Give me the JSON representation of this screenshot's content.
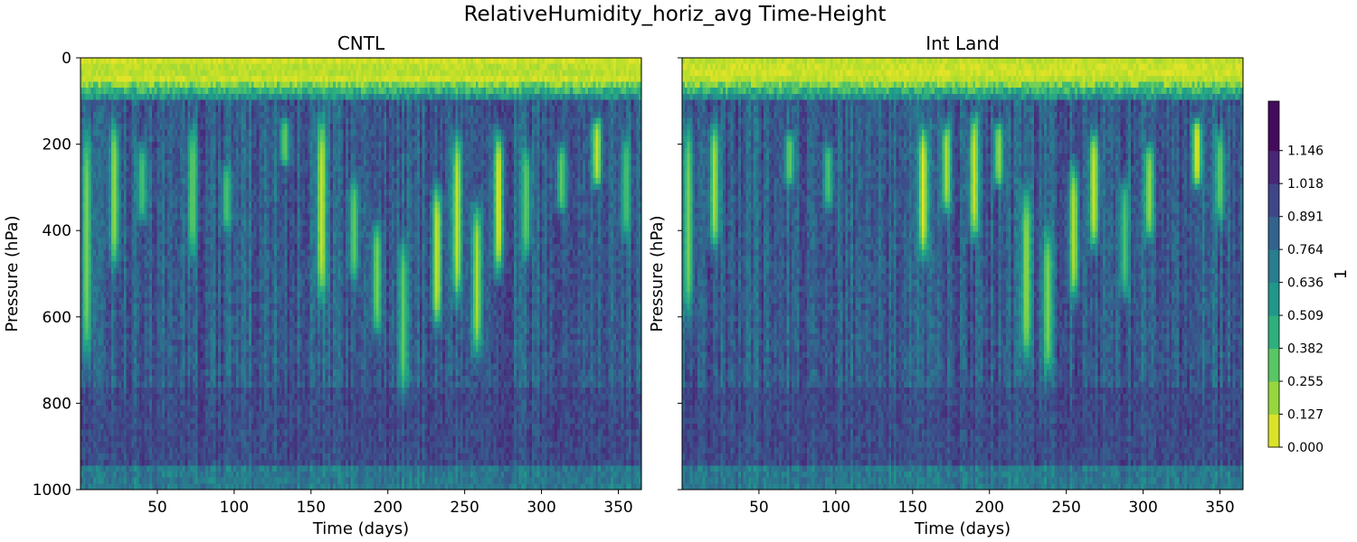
{
  "figure": {
    "title": "RelativeHumidity_horiz_avg Time-Height"
  },
  "chart_data": {
    "type": "heatmap",
    "shared": {
      "xlabel": "Time (days)",
      "ylabel": "Pressure (hPa)",
      "xlim": [
        0,
        365
      ],
      "ylim": [
        1000,
        0
      ],
      "y_inverted": true,
      "x_ticks": [
        50,
        100,
        150,
        200,
        250,
        300,
        350
      ],
      "y_ticks": [
        0,
        200,
        400,
        600,
        800,
        1000
      ],
      "colormap": "viridis_r"
    },
    "panels": [
      {
        "title": "CNTL",
        "show_y_ticklabels": true,
        "moist_episodes": [
          {
            "day": 4,
            "p_top": 160,
            "p_bot": 700,
            "value": 0.25
          },
          {
            "day": 22,
            "p_top": 150,
            "p_bot": 480,
            "value": 0.2
          },
          {
            "day": 40,
            "p_top": 200,
            "p_bot": 380,
            "value": 0.35
          },
          {
            "day": 73,
            "p_top": 160,
            "p_bot": 460,
            "value": 0.3
          },
          {
            "day": 95,
            "p_top": 250,
            "p_bot": 400,
            "value": 0.35
          },
          {
            "day": 133,
            "p_top": 140,
            "p_bot": 250,
            "value": 0.3
          },
          {
            "day": 157,
            "p_top": 140,
            "p_bot": 560,
            "value": 0.1
          },
          {
            "day": 178,
            "p_top": 280,
            "p_bot": 520,
            "value": 0.3
          },
          {
            "day": 193,
            "p_top": 380,
            "p_bot": 640,
            "value": 0.25
          },
          {
            "day": 210,
            "p_top": 420,
            "p_bot": 780,
            "value": 0.3
          },
          {
            "day": 232,
            "p_top": 300,
            "p_bot": 620,
            "value": 0.1
          },
          {
            "day": 245,
            "p_top": 180,
            "p_bot": 560,
            "value": 0.1
          },
          {
            "day": 258,
            "p_top": 340,
            "p_bot": 690,
            "value": 0.15
          },
          {
            "day": 272,
            "p_top": 170,
            "p_bot": 500,
            "value": 0.05
          },
          {
            "day": 290,
            "p_top": 210,
            "p_bot": 460,
            "value": 0.3
          },
          {
            "day": 313,
            "p_top": 200,
            "p_bot": 360,
            "value": 0.3
          },
          {
            "day": 336,
            "p_top": 140,
            "p_bot": 300,
            "value": 0.1
          },
          {
            "day": 355,
            "p_top": 180,
            "p_bot": 420,
            "value": 0.35
          }
        ]
      },
      {
        "title": "Int Land",
        "show_y_ticklabels": false,
        "moist_episodes": [
          {
            "day": 4,
            "p_top": 150,
            "p_bot": 600,
            "value": 0.25
          },
          {
            "day": 21,
            "p_top": 150,
            "p_bot": 440,
            "value": 0.15
          },
          {
            "day": 70,
            "p_top": 170,
            "p_bot": 300,
            "value": 0.3
          },
          {
            "day": 95,
            "p_top": 200,
            "p_bot": 350,
            "value": 0.35
          },
          {
            "day": 157,
            "p_top": 160,
            "p_bot": 460,
            "value": 0.05
          },
          {
            "day": 172,
            "p_top": 150,
            "p_bot": 360,
            "value": 0.15
          },
          {
            "day": 190,
            "p_top": 130,
            "p_bot": 420,
            "value": 0.1
          },
          {
            "day": 206,
            "p_top": 150,
            "p_bot": 300,
            "value": 0.2
          },
          {
            "day": 224,
            "p_top": 310,
            "p_bot": 700,
            "value": 0.2
          },
          {
            "day": 238,
            "p_top": 400,
            "p_bot": 730,
            "value": 0.25
          },
          {
            "day": 255,
            "p_top": 250,
            "p_bot": 560,
            "value": 0.15
          },
          {
            "day": 268,
            "p_top": 170,
            "p_bot": 440,
            "value": 0.1
          },
          {
            "day": 288,
            "p_top": 280,
            "p_bot": 560,
            "value": 0.35
          },
          {
            "day": 304,
            "p_top": 200,
            "p_bot": 420,
            "value": 0.2
          },
          {
            "day": 335,
            "p_top": 140,
            "p_bot": 300,
            "value": 0.05
          },
          {
            "day": 350,
            "p_top": 170,
            "p_bot": 380,
            "value": 0.3
          }
        ]
      }
    ],
    "colorbar": {
      "label": "1",
      "min": 0.0,
      "max": 1.21,
      "tick_values": [
        0.0,
        0.127,
        0.255,
        0.382,
        0.509,
        0.636,
        0.764,
        0.891,
        1.018,
        1.146
      ],
      "tick_labels": [
        "0.000",
        "0.127",
        "0.255",
        "0.382",
        "0.509",
        "0.636",
        "0.764",
        "0.891",
        "1.018",
        "1.146"
      ]
    }
  }
}
